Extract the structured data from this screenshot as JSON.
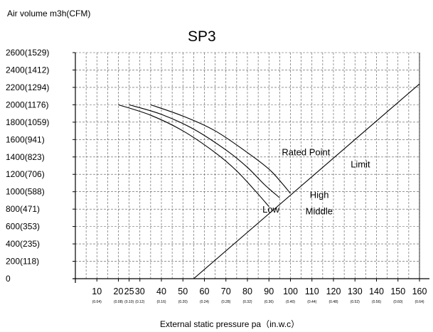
{
  "chart_data": {
    "type": "line",
    "title": "SP3",
    "ylabel": "Air volume m3h(CFM)",
    "xlabel": "External static pressure pa（in.w.c）",
    "xlim": [
      0,
      160
    ],
    "ylim": [
      0,
      2600
    ],
    "grid": true,
    "y_ticks": [
      {
        "value": 0,
        "label": "0"
      },
      {
        "value": 200,
        "label": "200(118)"
      },
      {
        "value": 400,
        "label": "400(235)"
      },
      {
        "value": 600,
        "label": "600(353)"
      },
      {
        "value": 800,
        "label": "800(471)"
      },
      {
        "value": 1000,
        "label": "1000(588)"
      },
      {
        "value": 1200,
        "label": "1200(706)"
      },
      {
        "value": 1400,
        "label": "1400(823)"
      },
      {
        "value": 1600,
        "label": "1600(941)"
      },
      {
        "value": 1800,
        "label": "1800(1059)"
      },
      {
        "value": 2000,
        "label": "2000(1176)"
      },
      {
        "value": 2200,
        "label": "2200(1294)"
      },
      {
        "value": 2400,
        "label": "2400(1412)"
      },
      {
        "value": 2600,
        "label": "2600(1529)"
      }
    ],
    "x_ticks": [
      {
        "value": 10,
        "label": "10",
        "sub": "(0.04)"
      },
      {
        "value": 20,
        "label": "20",
        "sub": "(0.08)"
      },
      {
        "value": 25,
        "label": "25",
        "sub": "(0.10)"
      },
      {
        "value": 30,
        "label": "30",
        "sub": "(0.12)"
      },
      {
        "value": 40,
        "label": "40",
        "sub": "(0.16)"
      },
      {
        "value": 50,
        "label": "50",
        "sub": "(0.20)"
      },
      {
        "value": 60,
        "label": "60",
        "sub": "(0.24)"
      },
      {
        "value": 70,
        "label": "70",
        "sub": "(0.28)"
      },
      {
        "value": 80,
        "label": "80",
        "sub": "(0.32)"
      },
      {
        "value": 90,
        "label": "90",
        "sub": "(0.36)"
      },
      {
        "value": 100,
        "label": "100",
        "sub": "(0.40)"
      },
      {
        "value": 110,
        "label": "110",
        "sub": "(0.44)"
      },
      {
        "value": 120,
        "label": "120",
        "sub": "(0.48)"
      },
      {
        "value": 130,
        "label": "130",
        "sub": "(0.52)"
      },
      {
        "value": 140,
        "label": "140",
        "sub": "(0.56)"
      },
      {
        "value": 150,
        "label": "150",
        "sub": "(0.60)"
      },
      {
        "value": 160,
        "label": "160",
        "sub": "(0.64)"
      }
    ],
    "series": [
      {
        "name": "Low",
        "x": [
          20,
          35,
          50,
          65,
          75,
          84,
          90
        ],
        "y": [
          2000,
          1880,
          1700,
          1450,
          1240,
          1000,
          830
        ]
      },
      {
        "name": "Middle",
        "x": [
          25,
          40,
          55,
          70,
          80,
          88,
          95
        ],
        "y": [
          2000,
          1890,
          1720,
          1480,
          1280,
          1080,
          930
        ]
      },
      {
        "name": "High",
        "x": [
          35,
          50,
          65,
          80,
          90,
          96,
          100
        ],
        "y": [
          2000,
          1870,
          1700,
          1450,
          1260,
          1100,
          980
        ]
      },
      {
        "name": "Limit",
        "x": [
          55,
          160
        ],
        "y": [
          0,
          2240
        ]
      }
    ],
    "annotations": [
      {
        "text": "Rated Point",
        "x": 96,
        "y": 1420
      },
      {
        "text": "Limit",
        "x": 128,
        "y": 1280
      },
      {
        "text": "High",
        "x": 109,
        "y": 930
      },
      {
        "text": "Middle",
        "x": 107,
        "y": 740
      },
      {
        "text": "Low",
        "x": 87,
        "y": 760
      }
    ]
  }
}
